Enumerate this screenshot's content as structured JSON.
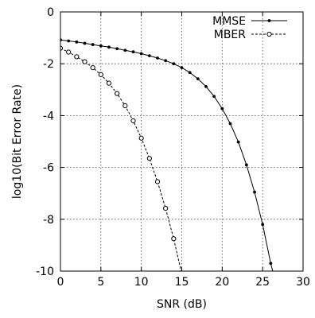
{
  "chart_data": {
    "type": "line",
    "xlabel": "SNR (dB)",
    "ylabel": "log10(Bit Error Rate)",
    "xlim": [
      0,
      30
    ],
    "ylim": [
      -10,
      0
    ],
    "xticks": [
      0,
      5,
      10,
      15,
      20,
      25,
      30
    ],
    "yticks": [
      0,
      -2,
      -4,
      -6,
      -8,
      -10
    ],
    "grid": true,
    "legend_position": "top-right",
    "series": [
      {
        "name": "MMSE",
        "color": "#000000",
        "line": "solid",
        "marker": "dot",
        "x": [
          0,
          1,
          2,
          3,
          4,
          5,
          6,
          7,
          8,
          9,
          10,
          11,
          12,
          13,
          14,
          15,
          16,
          17,
          18,
          19,
          20,
          21,
          22,
          23,
          24,
          25,
          26,
          26.5
        ],
        "y": [
          -1.08,
          -1.12,
          -1.16,
          -1.21,
          -1.26,
          -1.31,
          -1.36,
          -1.42,
          -1.48,
          -1.54,
          -1.61,
          -1.69,
          -1.78,
          -1.88,
          -2.0,
          -2.15,
          -2.34,
          -2.58,
          -2.88,
          -3.26,
          -3.73,
          -4.31,
          -5.02,
          -5.9,
          -6.95,
          -8.2,
          -9.7,
          -10.3
        ]
      },
      {
        "name": "MBER",
        "color": "#000000",
        "line": "dashed",
        "marker": "circle",
        "x": [
          0,
          1,
          2,
          3,
          4,
          5,
          6,
          7,
          8,
          9,
          10,
          11,
          12,
          13,
          14,
          15,
          15.7
        ],
        "y": [
          -1.4,
          -1.55,
          -1.73,
          -1.92,
          -2.15,
          -2.42,
          -2.75,
          -3.15,
          -3.62,
          -4.2,
          -4.87,
          -5.65,
          -6.55,
          -7.58,
          -8.75,
          -10.1,
          -11.0
        ]
      }
    ]
  }
}
